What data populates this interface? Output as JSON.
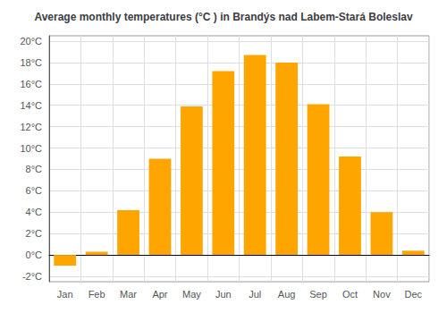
{
  "chart_data": {
    "type": "bar",
    "title": "Average monthly temperatures (°C ) in Brandýs nad Labem-Stará Boleslav",
    "categories": [
      "Jan",
      "Feb",
      "Mar",
      "Apr",
      "May",
      "Jun",
      "Jul",
      "Aug",
      "Sep",
      "Oct",
      "Nov",
      "Dec"
    ],
    "values": [
      -1.0,
      0.3,
      4.2,
      9.0,
      13.9,
      17.2,
      18.7,
      18.0,
      14.1,
      9.2,
      4.0,
      0.4
    ],
    "color": "#FFA500",
    "ylim": [
      -2.5,
      20.5
    ],
    "yticks": [
      {
        "value": -2,
        "label": "-2°C"
      },
      {
        "value": 0,
        "label": "0°C"
      },
      {
        "value": 2,
        "label": "2°C"
      },
      {
        "value": 4,
        "label": "4°C"
      },
      {
        "value": 6,
        "label": "6°C"
      },
      {
        "value": 8,
        "label": "8°C"
      },
      {
        "value": 10,
        "label": "10°C"
      },
      {
        "value": 12,
        "label": "12°C"
      },
      {
        "value": 14,
        "label": "14°C"
      },
      {
        "value": 16,
        "label": "16°C"
      },
      {
        "value": 18,
        "label": "18°C"
      },
      {
        "value": 20,
        "label": "20°C"
      }
    ],
    "grid": true
  }
}
